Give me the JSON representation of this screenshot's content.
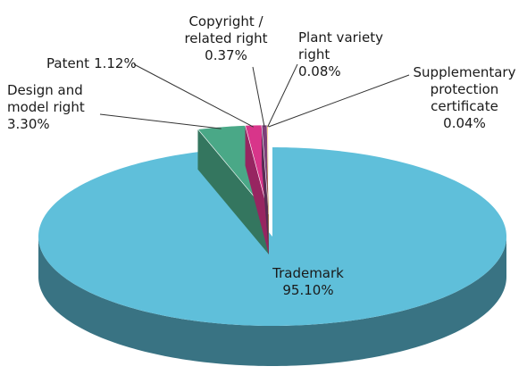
{
  "chart_data": {
    "type": "pie",
    "categories": [
      "Trademark",
      "Design and model right",
      "Patent",
      "Copyright / related right",
      "Plant variety right",
      "Supplementary protection certificate"
    ],
    "values": [
      95.1,
      3.3,
      1.12,
      0.37,
      0.08,
      0.04
    ],
    "value_labels": [
      "95.10%",
      "3.30%",
      "1.12%",
      "0.37%",
      "0.08%",
      "0.04%"
    ],
    "colors": [
      "#5fbfda",
      "#4aa887",
      "#d8358a",
      "#7d3f78",
      "#f2a53a",
      "#d9cfb8"
    ]
  }
}
